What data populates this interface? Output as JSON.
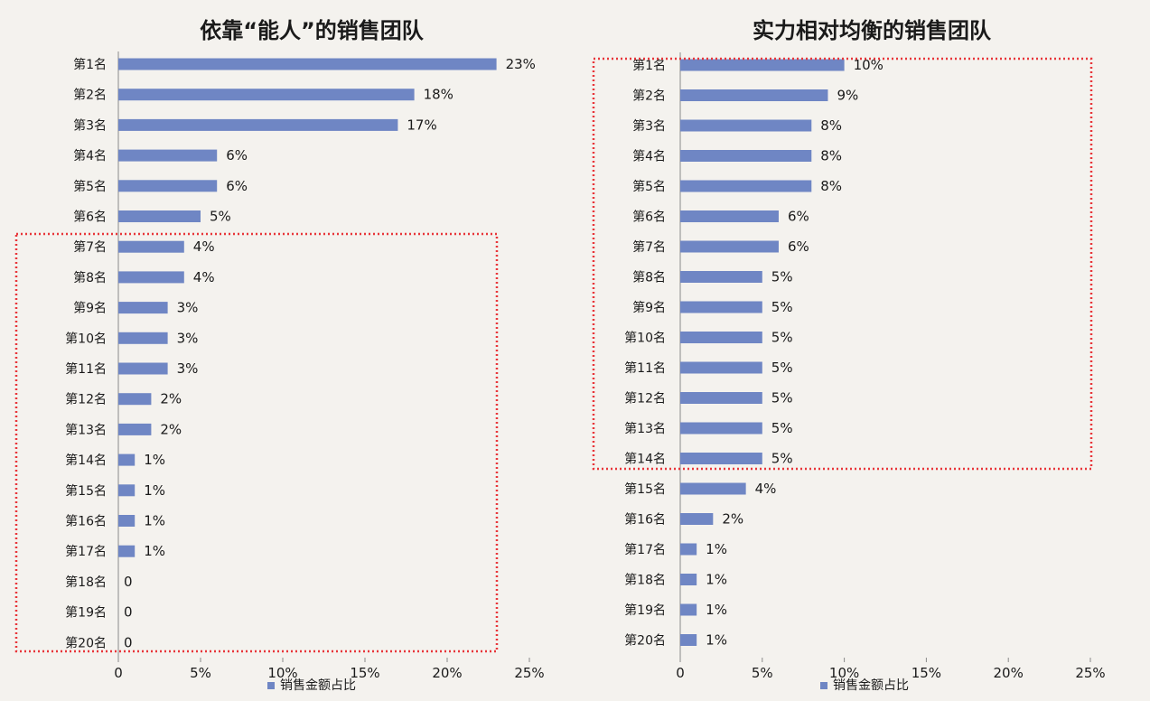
{
  "colors": {
    "bar": "#6f86c4",
    "highlight": "#e8363a",
    "text": "#1a1a1a",
    "axis": "#8a8a8a"
  },
  "chart_data": [
    {
      "type": "bar",
      "orientation": "horizontal",
      "title": "依靠“能人”的销售团队",
      "categories": [
        "第1名",
        "第2名",
        "第3名",
        "第4名",
        "第5名",
        "第6名",
        "第7名",
        "第8名",
        "第9名",
        "第10名",
        "第11名",
        "第12名",
        "第13名",
        "第14名",
        "第15名",
        "第16名",
        "第17名",
        "第18名",
        "第19名",
        "第20名"
      ],
      "values": [
        23,
        18,
        17,
        6,
        6,
        5,
        4,
        4,
        3,
        3,
        3,
        2,
        2,
        1,
        1,
        1,
        1,
        0,
        0,
        0
      ],
      "value_labels": [
        "23%",
        "18%",
        "17%",
        "6%",
        "6%",
        "5%",
        "4%",
        "4%",
        "3%",
        "3%",
        "3%",
        "2%",
        "2%",
        "1%",
        "1%",
        "1%",
        "1%",
        "0",
        "0",
        "0"
      ],
      "xticks": [
        0,
        5,
        10,
        15,
        20,
        25
      ],
      "xtick_labels": [
        "0",
        "5%",
        "10%",
        "15%",
        "20%",
        "25%"
      ],
      "xlim": [
        0,
        25
      ],
      "legend": {
        "label": "销售金额占比",
        "position": "bottom"
      },
      "highlight_range": [
        "第7名",
        "第20名"
      ]
    },
    {
      "type": "bar",
      "orientation": "horizontal",
      "title": "实力相对均衡的销售团队",
      "categories": [
        "第1名",
        "第2名",
        "第3名",
        "第4名",
        "第5名",
        "第6名",
        "第7名",
        "第8名",
        "第9名",
        "第10名",
        "第11名",
        "第12名",
        "第13名",
        "第14名",
        "第15名",
        "第16名",
        "第17名",
        "第18名",
        "第19名",
        "第20名"
      ],
      "values": [
        10,
        9,
        8,
        8,
        8,
        6,
        6,
        5,
        5,
        5,
        5,
        5,
        5,
        5,
        4,
        2,
        1,
        1,
        1,
        1
      ],
      "value_labels": [
        "10%",
        "9%",
        "8%",
        "8%",
        "8%",
        "6%",
        "6%",
        "5%",
        "5%",
        "5%",
        "5%",
        "5%",
        "5%",
        "5%",
        "4%",
        "2%",
        "1%",
        "1%",
        "1%",
        "1%"
      ],
      "xticks": [
        0,
        5,
        10,
        15,
        20,
        25
      ],
      "xtick_labels": [
        "0",
        "5%",
        "10%",
        "15%",
        "20%",
        "25%"
      ],
      "xlim": [
        0,
        25
      ],
      "legend": {
        "label": "销售金额占比",
        "position": "bottom"
      },
      "highlight_range": [
        "第1名",
        "第14名"
      ]
    }
  ]
}
